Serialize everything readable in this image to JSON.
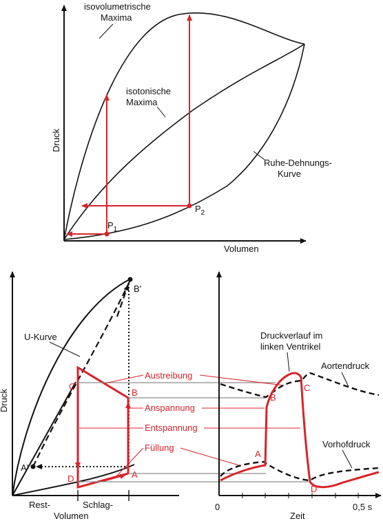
{
  "top": {
    "y_axis": "Druck",
    "x_axis": "Volumen",
    "curve_isovol": [
      "isovolumetrische",
      "Maxima"
    ],
    "curve_isoton": [
      "isotonische",
      "Maxima"
    ],
    "curve_rest": [
      "Ruhe-Dehnungs-",
      "Kurve"
    ],
    "p1": "P",
    "p1_sub": "1",
    "p2": "P",
    "p2_sub": "2"
  },
  "left": {
    "y_axis": "Druck",
    "u_curve": "U-Kurve",
    "x_label_rest": "Rest-",
    "x_label_schlag": "Schlag-",
    "x_label_volumen": "Volumen",
    "pt_a": "A",
    "pt_b": "B",
    "pt_c": "C",
    "pt_d": "D",
    "pt_a_prime": "A'",
    "pt_b_prime": "B'"
  },
  "phases": {
    "austreibung": "Austreibung",
    "anspannung": "Anspannung",
    "entspannung": "Entspannung",
    "fuellung": "Füllung"
  },
  "right": {
    "ventricle_line1": "Druckverlauf im",
    "ventricle_line2": "linken Ventrikel",
    "aortic": "Aortendruck",
    "atrial": "Vorhofdruck",
    "x_axis": "Zeit",
    "tick_0": "0",
    "tick_05": "0,5 s",
    "pt_a": "A",
    "pt_b": "B",
    "pt_c": "C",
    "pt_d": "D"
  },
  "colors": {
    "ink": "#111111",
    "red": "#d8232a",
    "guide": "#8a8a8a"
  }
}
